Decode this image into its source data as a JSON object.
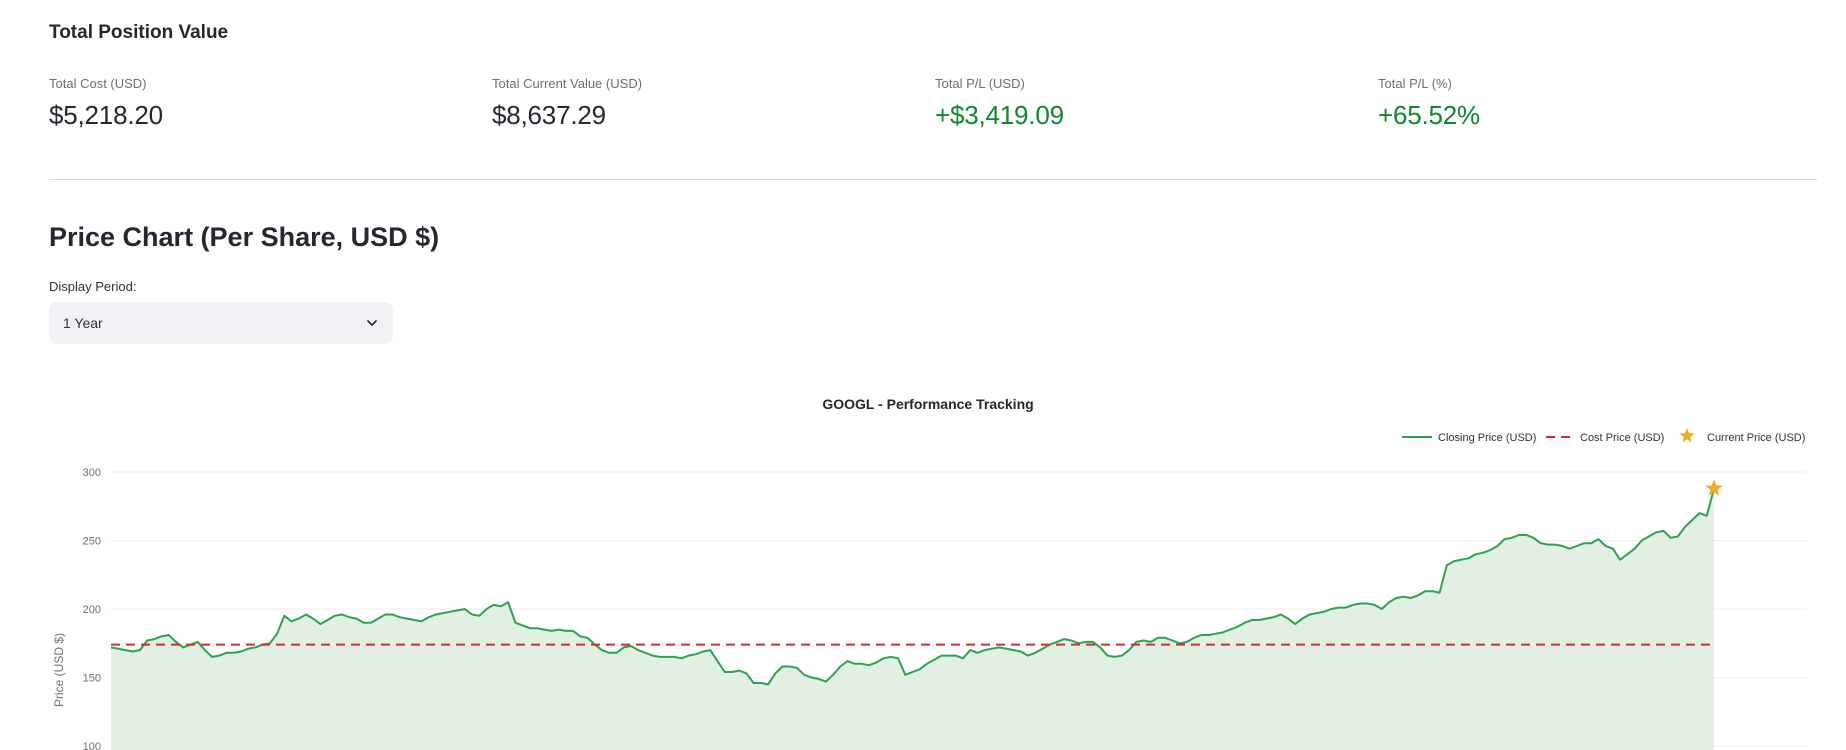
{
  "summary": {
    "title": "Total Position Value",
    "metrics": [
      {
        "label": "Total Cost (USD)",
        "value": "$5,218.20"
      },
      {
        "label": "Total Current Value (USD)",
        "value": "$8,637.29"
      },
      {
        "label": "Total P/L (USD)",
        "value": "+$3,419.09"
      },
      {
        "label": "Total P/L (%)",
        "value": "+65.52%"
      }
    ]
  },
  "chart_section": {
    "title": "Price Chart (Per Share, USD $)",
    "period_label": "Display Period:",
    "period_value": "1 Year"
  },
  "colors": {
    "positive": "#0e8a2b",
    "line": "#2ca44f",
    "fill": "#e1f0e3",
    "cost": "#e1262c",
    "star": "#f5a623"
  },
  "chart_data": {
    "type": "line",
    "title": "GOOGL - Performance Tracking",
    "ylabel": "Price (USD $)",
    "xlabel": "",
    "ylim": [
      98,
      305
    ],
    "y_ticks": [
      100,
      150,
      200,
      250,
      300
    ],
    "grid": true,
    "legend_position": "top-right",
    "series": [
      {
        "name": "Closing Price (USD)",
        "values": [
          172,
          171,
          170,
          169,
          170,
          177,
          178,
          180,
          181,
          176,
          172,
          174,
          176,
          170,
          165,
          166,
          168,
          168,
          169,
          171,
          172,
          174,
          175,
          182,
          195,
          191,
          193,
          196,
          193,
          189,
          192,
          195,
          196,
          194,
          193,
          190,
          190,
          193,
          196,
          196,
          194,
          193,
          192,
          191,
          194,
          196,
          197,
          198,
          199,
          200,
          196,
          195,
          200,
          203,
          202,
          205,
          190,
          188,
          186,
          186,
          185,
          184,
          185,
          184,
          184,
          180,
          179,
          174,
          170,
          168,
          168,
          172,
          173,
          170,
          168,
          166,
          165,
          165,
          165,
          164,
          166,
          167,
          169,
          170,
          162,
          154,
          154,
          155,
          153,
          146,
          146,
          145,
          153,
          158,
          158,
          157,
          152,
          150,
          149,
          147,
          152,
          158,
          162,
          160,
          160,
          159,
          161,
          164,
          165,
          164,
          152,
          154,
          156,
          160,
          163,
          166,
          166,
          166,
          164,
          170,
          168,
          170,
          171,
          172,
          171,
          170,
          169,
          166,
          168,
          171,
          174,
          176,
          178,
          177,
          175,
          176,
          176,
          172,
          166,
          165,
          166,
          170,
          176,
          177,
          176,
          179,
          179,
          177,
          175,
          176,
          179,
          181,
          181,
          182,
          183,
          185,
          187,
          190,
          192,
          192,
          193,
          194,
          196,
          193,
          189,
          193,
          196,
          197,
          198,
          200,
          201,
          201,
          203,
          204,
          204,
          203,
          200,
          205,
          208,
          209,
          208,
          210,
          213,
          213,
          212,
          232,
          235,
          236,
          237,
          240,
          241,
          243,
          246,
          251,
          252,
          254,
          254,
          252,
          248,
          247,
          247,
          246,
          244,
          246,
          248,
          248,
          251,
          246,
          244,
          236,
          240,
          244,
          250,
          253,
          256,
          257,
          252,
          253,
          260,
          265,
          270,
          268,
          288
        ]
      },
      {
        "name": "Cost Price (USD)",
        "value": 174
      },
      {
        "name": "Current Price (USD)",
        "value": 288
      }
    ]
  }
}
